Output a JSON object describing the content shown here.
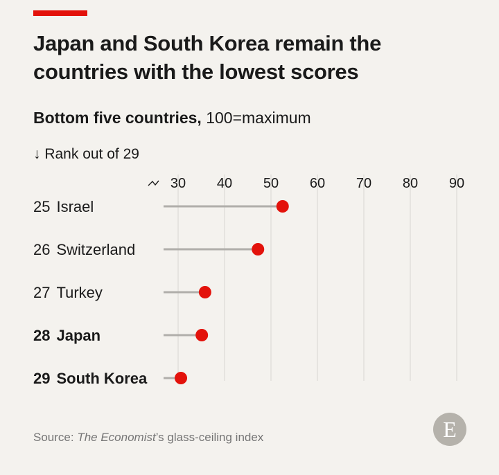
{
  "header": {
    "title": "Japan and South Korea remain the countries with the lowest scores",
    "subtitle_bold": "Bottom five countries,",
    "subtitle_rest": " 100=maximum",
    "rank_label": "↓ Rank out of 29"
  },
  "footer": {
    "source_prefix": "Source: ",
    "source_italic": "The Economist",
    "source_rest": "’s glass-ceiling index",
    "logo_letter": "E"
  },
  "colors": {
    "accent": "#e3120b",
    "dot": "#e3120b",
    "stem": "#b0aeaa",
    "grid": "#d8d6d2",
    "logo": "#b5b2ab"
  },
  "chart_data": {
    "type": "scatter",
    "title": "Japan and South Korea remain the countries with the lowest scores",
    "subtitle": "Bottom five countries, 100=maximum",
    "xlabel": "",
    "ylabel": "Rank out of 29",
    "xlim": [
      30,
      90
    ],
    "axis_break": true,
    "x_ticks": [
      30,
      40,
      50,
      60,
      70,
      80,
      90
    ],
    "grid": true,
    "rows": [
      {
        "rank": "25",
        "country": "Israel",
        "value": 52.5,
        "bold": false
      },
      {
        "rank": "26",
        "country": "Switzerland",
        "value": 47.2,
        "bold": false
      },
      {
        "rank": "27",
        "country": "Turkey",
        "value": 35.8,
        "bold": false
      },
      {
        "rank": "28",
        "country": "Japan",
        "value": 35.1,
        "bold": true
      },
      {
        "rank": "29",
        "country": "South Korea",
        "value": 30.6,
        "bold": true
      }
    ]
  }
}
